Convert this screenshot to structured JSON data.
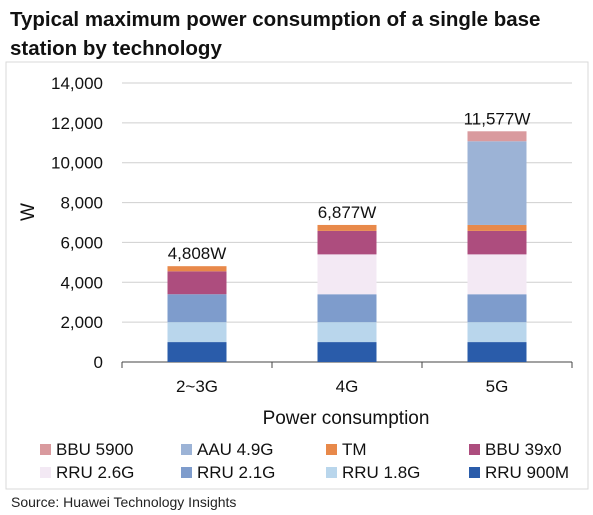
{
  "title": "Typical maximum power consumption of a single base station by technology",
  "source": "Source: Huawei Technology Insights",
  "chart_data": {
    "type": "bar",
    "stacked": true,
    "categories": [
      "2~3G",
      "4G",
      "5G"
    ],
    "xlabel": "Power  consumption",
    "ylabel": "W",
    "ylim": [
      0,
      14000
    ],
    "yticks": [
      0,
      2000,
      4000,
      6000,
      8000,
      10000,
      12000,
      14000
    ],
    "ytick_labels": [
      "0",
      "2,000",
      "4,000",
      "6,000",
      "8,000",
      "10,000",
      "12,000",
      "14,000"
    ],
    "grid": true,
    "legend_position": "bottom",
    "totals": [
      4808,
      6877,
      11577
    ],
    "total_labels": [
      "4,808W",
      "6,877W",
      "11,577W"
    ],
    "series": [
      {
        "name": "RRU 900M",
        "color": "#2a5caa",
        "values": [
          1000,
          1000,
          1000
        ]
      },
      {
        "name": "RRU 1.8G",
        "color": "#b9d6ec",
        "values": [
          1000,
          1000,
          1000
        ]
      },
      {
        "name": "RRU 2.1G",
        "color": "#7e9ccc",
        "values": [
          1400,
          1400,
          1400
        ]
      },
      {
        "name": "RRU 2.6G",
        "color": "#f3e9f4",
        "values": [
          0,
          2000,
          2000
        ]
      },
      {
        "name": "BBU 39x0",
        "color": "#ad4d7e",
        "values": [
          1150,
          1180,
          1180
        ]
      },
      {
        "name": "TM",
        "color": "#e8894a",
        "values": [
          258,
          297,
          297
        ]
      },
      {
        "name": "AAU 4.9G",
        "color": "#9cb3d6",
        "values": [
          0,
          0,
          4200
        ]
      },
      {
        "name": "BBU 5900",
        "color": "#d99a9e",
        "values": [
          0,
          0,
          500
        ]
      }
    ],
    "legend_order": [
      "BBU 5900",
      "AAU 4.9G",
      "TM",
      "BBU 39x0",
      "RRU 2.6G",
      "RRU 2.1G",
      "RRU 1.8G",
      "RRU 900M"
    ]
  }
}
